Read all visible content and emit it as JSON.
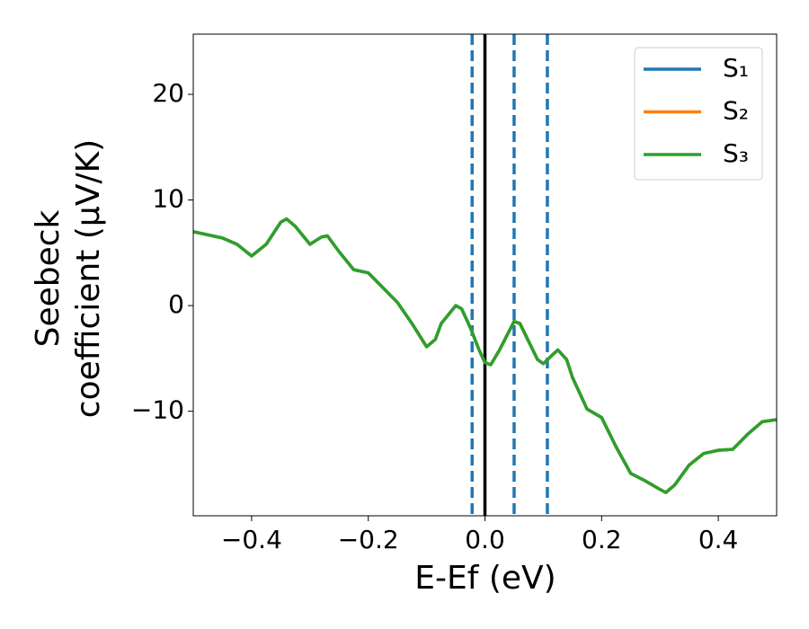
{
  "chart_data": {
    "type": "line",
    "xlabel": "E-Ef (eV)",
    "ylabel": [
      "Seebeck",
      "coefficient  (μV/K)"
    ],
    "xlim": [
      -0.5,
      0.5
    ],
    "ylim": [
      -19.9,
      25.7
    ],
    "xticks": [
      {
        "value": -0.4,
        "label": "−0.4"
      },
      {
        "value": -0.2,
        "label": "−0.2"
      },
      {
        "value": 0.0,
        "label": "0.0"
      },
      {
        "value": 0.2,
        "label": "0.2"
      },
      {
        "value": 0.4,
        "label": "0.4"
      }
    ],
    "yticks": [
      {
        "value": -10,
        "label": "−10"
      },
      0,
      10,
      20
    ],
    "legend": "upper right",
    "x": [
      -0.5,
      -0.45,
      -0.425,
      -0.4,
      -0.375,
      -0.35,
      -0.34,
      -0.325,
      -0.3,
      -0.28,
      -0.27,
      -0.25,
      -0.225,
      -0.2,
      -0.175,
      -0.15,
      -0.125,
      -0.1,
      -0.085,
      -0.075,
      -0.05,
      -0.04,
      -0.025,
      -0.01,
      0.0,
      0.01,
      0.025,
      0.05,
      0.06,
      0.075,
      0.09,
      0.1,
      0.115,
      0.125,
      0.14,
      0.15,
      0.175,
      0.2,
      0.225,
      0.25,
      0.275,
      0.3,
      0.31,
      0.325,
      0.35,
      0.375,
      0.4,
      0.425,
      0.45,
      0.475,
      0.5
    ],
    "series": [
      {
        "name": "S₁",
        "color": "#1f77b4",
        "values": [
          7.0,
          6.4,
          5.8,
          4.7,
          5.8,
          7.9,
          8.2,
          7.5,
          5.8,
          6.5,
          6.6,
          5.1,
          3.4,
          3.1,
          1.7,
          0.3,
          -1.7,
          -3.9,
          -3.2,
          -1.7,
          0.0,
          -0.3,
          -2.1,
          -4.2,
          -5.4,
          -5.6,
          -4.2,
          -1.5,
          -1.7,
          -3.4,
          -5.1,
          -5.5,
          -4.7,
          -4.2,
          -5.1,
          -6.8,
          -9.8,
          -10.6,
          -13.4,
          -15.9,
          -16.6,
          -17.4,
          -17.7,
          -17.0,
          -15.1,
          -14.0,
          -13.7,
          -13.6,
          -12.2,
          -11.0,
          -10.8
        ]
      },
      {
        "name": "S₂",
        "color": "#ff7f0e",
        "values": [
          7.0,
          6.4,
          5.8,
          4.7,
          5.8,
          7.9,
          8.2,
          7.5,
          5.8,
          6.5,
          6.6,
          5.1,
          3.4,
          3.1,
          1.7,
          0.3,
          -1.7,
          -3.9,
          -3.2,
          -1.7,
          0.0,
          -0.3,
          -2.1,
          -4.2,
          -5.4,
          -5.6,
          -4.2,
          -1.5,
          -1.7,
          -3.4,
          -5.1,
          -5.5,
          -4.7,
          -4.2,
          -5.1,
          -6.8,
          -9.8,
          -10.6,
          -13.4,
          -15.9,
          -16.6,
          -17.4,
          -17.7,
          -17.0,
          -15.1,
          -14.0,
          -13.7,
          -13.6,
          -12.2,
          -11.0,
          -10.8
        ]
      },
      {
        "name": "S₃",
        "color": "#2ca02c",
        "values": [
          7.0,
          6.4,
          5.8,
          4.7,
          5.8,
          7.9,
          8.2,
          7.5,
          5.8,
          6.5,
          6.6,
          5.1,
          3.4,
          3.1,
          1.7,
          0.3,
          -1.7,
          -3.9,
          -3.2,
          -1.7,
          0.0,
          -0.3,
          -2.1,
          -4.2,
          -5.4,
          -5.6,
          -4.2,
          -1.5,
          -1.7,
          -3.4,
          -5.1,
          -5.5,
          -4.7,
          -4.2,
          -5.1,
          -6.8,
          -9.8,
          -10.6,
          -13.4,
          -15.9,
          -16.6,
          -17.4,
          -17.7,
          -17.0,
          -15.1,
          -14.0,
          -13.7,
          -13.6,
          -12.2,
          -11.0,
          -10.8
        ]
      }
    ],
    "vlines": [
      {
        "x": -0.022,
        "color": "#1f77b4",
        "dashed": true
      },
      {
        "x": 0.0,
        "color": "#000000",
        "dashed": false
      },
      {
        "x": 0.05,
        "color": "#1f77b4",
        "dashed": true
      },
      {
        "x": 0.107,
        "color": "#1f77b4",
        "dashed": true
      }
    ]
  }
}
